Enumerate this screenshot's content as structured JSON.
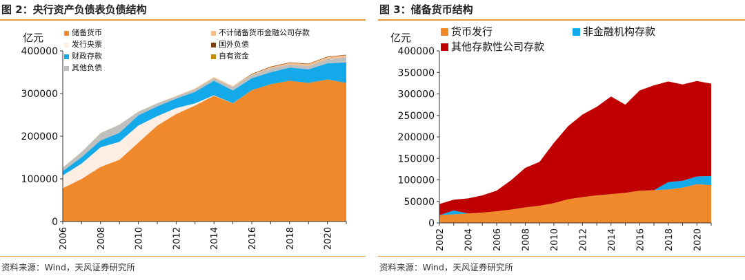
{
  "panels": [
    {
      "title": "图 2：央行资产负债表负债结构",
      "source": "资料来源：Wind，天风证券研究所",
      "chart_data": {
        "type": "area",
        "stacked": true,
        "ylabel": "亿元",
        "ylim": [
          0,
          400000
        ],
        "yticks": [
          0,
          100000,
          200000,
          300000,
          400000
        ],
        "xlim": [
          2006,
          2021
        ],
        "xticks": [
          "2006",
          "2008",
          "2010",
          "2012",
          "2014",
          "2016",
          "2018",
          "2020"
        ],
        "x": [
          2006,
          2007,
          2008,
          2009,
          2010,
          2011,
          2012,
          2013,
          2014,
          2015,
          2016,
          2017,
          2018,
          2019,
          2020,
          2021
        ],
        "grid": false,
        "legend_position": "top",
        "series": [
          {
            "name": "储备货币",
            "color": "#f0892b",
            "values": [
              78000,
              100000,
              128000,
              145000,
              185000,
              225000,
              252000,
              272000,
              295000,
              277000,
              308000,
              322000,
              330000,
              325000,
              333000,
              325000
            ]
          },
          {
            "name": "发行央票",
            "color": "#fdeee4",
            "values": [
              30000,
              36000,
              46000,
              42000,
              40000,
              22000,
              14000,
              5000,
              1000,
              200,
              0,
              0,
              0,
              0,
              0,
              0
            ]
          },
          {
            "name": "财政存款",
            "color": "#14a9e8",
            "values": [
              10000,
              15000,
              16000,
              21000,
              24000,
              23000,
              22000,
              27000,
              34000,
              30000,
              28000,
              28000,
              31000,
              32000,
              38000,
              48000
            ]
          },
          {
            "name": "其他负债",
            "color": "#bfbfbf",
            "values": [
              8000,
              12000,
              17000,
              19000,
              8000,
              7000,
              5000,
              6000,
              6000,
              8000,
              7000,
              9000,
              7000,
              8000,
              10000,
              12000
            ]
          },
          {
            "name": "不计储备货币金融公司存款",
            "color": "#fbc08a",
            "values": [
              0,
              0,
              0,
              0,
              0,
              0,
              1000,
              1500,
              2000,
              2000,
              2000,
              3000,
              4000,
              4000,
              4500,
              5000
            ]
          },
          {
            "name": "国外负债",
            "color": "#7b3f10",
            "values": [
              0,
              0,
              0,
              0,
              0,
              0,
              0,
              0,
              0,
              0,
              1000,
              1000,
              1000,
              1000,
              1000,
              1000
            ]
          },
          {
            "name": "自有资金",
            "color": "#c28d0c",
            "values": [
              200,
              200,
              200,
              200,
              200,
              200,
              200,
              200,
              200,
              200,
              200,
              200,
              200,
              200,
              200,
              200
            ]
          }
        ]
      }
    },
    {
      "title": "图 3：储备货币结构",
      "source": "资料来源：Wind，天风证券研究所",
      "chart_data": {
        "type": "area",
        "stacked": true,
        "ylabel": "亿元",
        "ylim": [
          0,
          400000
        ],
        "yticks": [
          0,
          50000,
          100000,
          150000,
          200000,
          250000,
          300000,
          350000,
          400000
        ],
        "xlim": [
          2002,
          2021
        ],
        "xticks": [
          "2002",
          "2004",
          "2006",
          "2008",
          "2010",
          "2012",
          "2014",
          "2016",
          "2018",
          "2020"
        ],
        "x": [
          2002,
          2003,
          2004,
          2005,
          2006,
          2007,
          2008,
          2009,
          2010,
          2011,
          2012,
          2013,
          2014,
          2015,
          2016,
          2017,
          2018,
          2019,
          2020,
          2021
        ],
        "grid": false,
        "legend_position": "top",
        "series": [
          {
            "name": "货币发行",
            "color": "#f0892b",
            "values": [
              18000,
              20000,
              22000,
              24000,
              27000,
              31000,
              36000,
              40000,
              46000,
              55000,
              60000,
              64000,
              67000,
              70000,
              75000,
              76000,
              78000,
              82000,
              90000,
              88000
            ]
          },
          {
            "name": "非金融机构存款",
            "color": "#14a9e8",
            "values": [
              0,
              9000,
              0,
              0,
              0,
              0,
              0,
              0,
              0,
              0,
              0,
              0,
              0,
              0,
              0,
              0,
              17000,
              16000,
              18000,
              21000
            ]
          },
          {
            "name": "其他存款性公司存款",
            "color": "#c00000",
            "values": [
              26000,
              25000,
              35000,
              40000,
              48000,
              68000,
              92000,
              102000,
              140000,
              170000,
              192000,
              206000,
              227000,
              205000,
              233000,
              244000,
              234000,
              224000,
              222000,
              215000
            ]
          }
        ]
      }
    }
  ]
}
